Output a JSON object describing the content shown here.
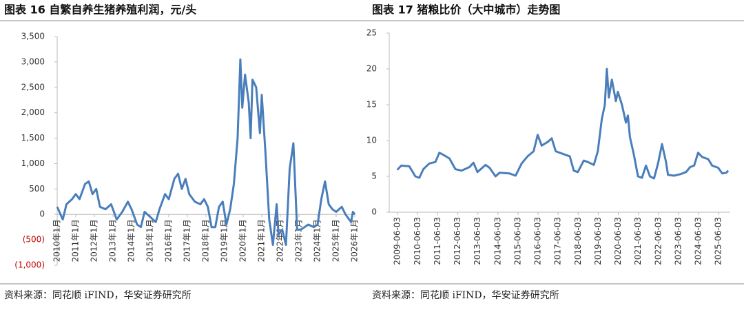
{
  "chart_data": [
    {
      "type": "line",
      "title": "图表 16  自繁自养生猪养殖利润，元/头",
      "source": "资料来源：同花顺 iFIND，华安证券研究所",
      "xlim": [
        2010,
        2026
      ],
      "ylim": [
        -1000,
        3500
      ],
      "grid": false,
      "xticks": [
        {
          "value": 2010,
          "label": "2010年1月"
        },
        {
          "value": 2011,
          "label": "2011年1月"
        },
        {
          "value": 2012,
          "label": "2012年1月"
        },
        {
          "value": 2013,
          "label": "2013年1月"
        },
        {
          "value": 2014,
          "label": "2014年1月"
        },
        {
          "value": 2015,
          "label": "2015年1月"
        },
        {
          "value": 2016,
          "label": "2016年1月"
        },
        {
          "value": 2017,
          "label": "2017年1月"
        },
        {
          "value": 2018,
          "label": "2018年1月"
        },
        {
          "value": 2019,
          "label": "2019年1月"
        },
        {
          "value": 2020,
          "label": "2020年1月"
        },
        {
          "value": 2021,
          "label": "2021年1月"
        },
        {
          "value": 2022,
          "label": "2022年1月"
        },
        {
          "value": 2023,
          "label": "2023年1月"
        },
        {
          "value": 2024,
          "label": "2024年1月"
        },
        {
          "value": 2025,
          "label": "2025年1月"
        },
        {
          "value": 2026,
          "label": "2026年1月"
        }
      ],
      "yticks": [
        {
          "value": 3500,
          "label": "3,500"
        },
        {
          "value": 3000,
          "label": "3,000"
        },
        {
          "value": 2500,
          "label": "2,500"
        },
        {
          "value": 2000,
          "label": "2,000"
        },
        {
          "value": 1500,
          "label": "1,500"
        },
        {
          "value": 1000,
          "label": "1,000"
        },
        500,
        0,
        {
          "value": -500,
          "label": "(500)"
        },
        {
          "value": -1000,
          "label": "(1,000)"
        }
      ],
      "series": [
        {
          "color": "#4a7ebb",
          "x": [
            2010.0,
            2010.3,
            2010.5,
            2010.8,
            2011.0,
            2011.2,
            2011.5,
            2011.7,
            2011.9,
            2012.1,
            2012.3,
            2012.6,
            2012.9,
            2013.0,
            2013.2,
            2013.5,
            2013.8,
            2014.0,
            2014.3,
            2014.5,
            2014.7,
            2015.0,
            2015.3,
            2015.5,
            2015.8,
            2016.0,
            2016.3,
            2016.5,
            2016.7,
            2016.9,
            2017.1,
            2017.4,
            2017.7,
            2017.9,
            2018.1,
            2018.3,
            2018.5,
            2018.7,
            2018.9,
            2019.1,
            2019.3,
            2019.5,
            2019.7,
            2019.85,
            2019.95,
            2020.1,
            2020.3,
            2020.4,
            2020.5,
            2020.7,
            2020.9,
            2021.0,
            2021.2,
            2021.4,
            2021.6,
            2021.8,
            2021.9,
            2022.1,
            2022.3,
            2022.5,
            2022.7,
            2022.9,
            2023.1,
            2023.3,
            2023.5,
            2023.8,
            2024.0,
            2024.2,
            2024.4,
            2024.6,
            2024.8,
            2025.0,
            2025.3,
            2025.5,
            2025.8,
            2025.9,
            2026.0
          ],
          "values": [
            150,
            -100,
            200,
            300,
            400,
            300,
            600,
            650,
            400,
            500,
            150,
            100,
            200,
            100,
            -100,
            50,
            250,
            100,
            -200,
            -250,
            50,
            -50,
            -150,
            100,
            400,
            300,
            700,
            800,
            500,
            700,
            400,
            250,
            200,
            300,
            150,
            -250,
            -250,
            150,
            250,
            -200,
            100,
            600,
            1500,
            3050,
            2100,
            2750,
            2200,
            1500,
            2650,
            2500,
            1600,
            2350,
            1200,
            -100,
            -600,
            200,
            -400,
            -300,
            -600,
            900,
            1400,
            -300,
            -300,
            -250,
            -200,
            -250,
            -200,
            300,
            650,
            200,
            100,
            50,
            150,
            0,
            -150,
            50,
            0
          ]
        }
      ]
    },
    {
      "type": "line",
      "title": "图表 17  猪粮比价（大中城市）走势图",
      "source": "资料来源：同花顺 iFIND，华安证券研究所",
      "xlim": [
        2009.0,
        2026.0
      ],
      "ylim": [
        0,
        25
      ],
      "grid": false,
      "xticks": [
        {
          "value": 2009.42,
          "label": "2009-06-03"
        },
        {
          "value": 2010.42,
          "label": "2010-06-03"
        },
        {
          "value": 2011.42,
          "label": "2011-06-03"
        },
        {
          "value": 2012.42,
          "label": "2012-06-03"
        },
        {
          "value": 2013.42,
          "label": "2013-06-03"
        },
        {
          "value": 2014.42,
          "label": "2014-06-03"
        },
        {
          "value": 2015.42,
          "label": "2015-06-03"
        },
        {
          "value": 2016.42,
          "label": "2016-06-03"
        },
        {
          "value": 2017.42,
          "label": "2017-06-03"
        },
        {
          "value": 2018.42,
          "label": "2018-06-03"
        },
        {
          "value": 2019.42,
          "label": "2019-06-03"
        },
        {
          "value": 2020.42,
          "label": "2020-06-03"
        },
        {
          "value": 2021.42,
          "label": "2021-06-03"
        },
        {
          "value": 2022.42,
          "label": "2022-06-03"
        },
        {
          "value": 2023.42,
          "label": "2023-06-03"
        },
        {
          "value": 2024.42,
          "label": "2024-06-03"
        },
        {
          "value": 2025.42,
          "label": "2025-06-03"
        }
      ],
      "yticks": [
        0,
        5,
        10,
        15,
        20,
        25
      ],
      "series": [
        {
          "color": "#4a7ebb",
          "x": [
            2009.4,
            2009.6,
            2010.0,
            2010.3,
            2010.5,
            2010.7,
            2011.0,
            2011.3,
            2011.5,
            2011.7,
            2012.0,
            2012.3,
            2012.6,
            2013.0,
            2013.2,
            2013.4,
            2013.8,
            2014.0,
            2014.3,
            2014.5,
            2015.0,
            2015.3,
            2015.6,
            2015.9,
            2016.2,
            2016.4,
            2016.6,
            2016.9,
            2017.1,
            2017.3,
            2017.7,
            2018.0,
            2018.2,
            2018.4,
            2018.7,
            2018.9,
            2019.2,
            2019.4,
            2019.6,
            2019.75,
            2019.85,
            2019.95,
            2020.1,
            2020.3,
            2020.4,
            2020.6,
            2020.8,
            2020.9,
            2021.0,
            2021.2,
            2021.4,
            2021.6,
            2021.8,
            2022.0,
            2022.2,
            2022.4,
            2022.6,
            2022.8,
            2022.9,
            2023.2,
            2023.5,
            2023.8,
            2024.0,
            2024.2,
            2024.4,
            2024.6,
            2024.9,
            2025.1,
            2025.4,
            2025.6,
            2025.8,
            2025.9
          ],
          "values": [
            5.9,
            6.5,
            6.4,
            5.0,
            4.8,
            6.0,
            6.8,
            7.0,
            8.3,
            8.0,
            7.5,
            6.0,
            5.8,
            6.3,
            6.9,
            5.6,
            6.6,
            6.2,
            5.0,
            5.5,
            5.4,
            5.1,
            6.8,
            7.8,
            8.5,
            10.8,
            9.3,
            9.8,
            10.3,
            8.5,
            8.1,
            7.8,
            5.8,
            5.6,
            7.2,
            7.0,
            6.6,
            8.5,
            13.0,
            15.0,
            20.0,
            16.0,
            18.5,
            15.5,
            16.8,
            15.0,
            12.5,
            13.5,
            10.5,
            8.0,
            5.0,
            4.8,
            6.5,
            5.0,
            4.7,
            6.8,
            9.5,
            7.0,
            5.2,
            5.1,
            5.3,
            5.6,
            6.3,
            6.5,
            8.3,
            7.7,
            7.4,
            6.5,
            6.2,
            5.4,
            5.5,
            5.8
          ]
        }
      ]
    }
  ]
}
